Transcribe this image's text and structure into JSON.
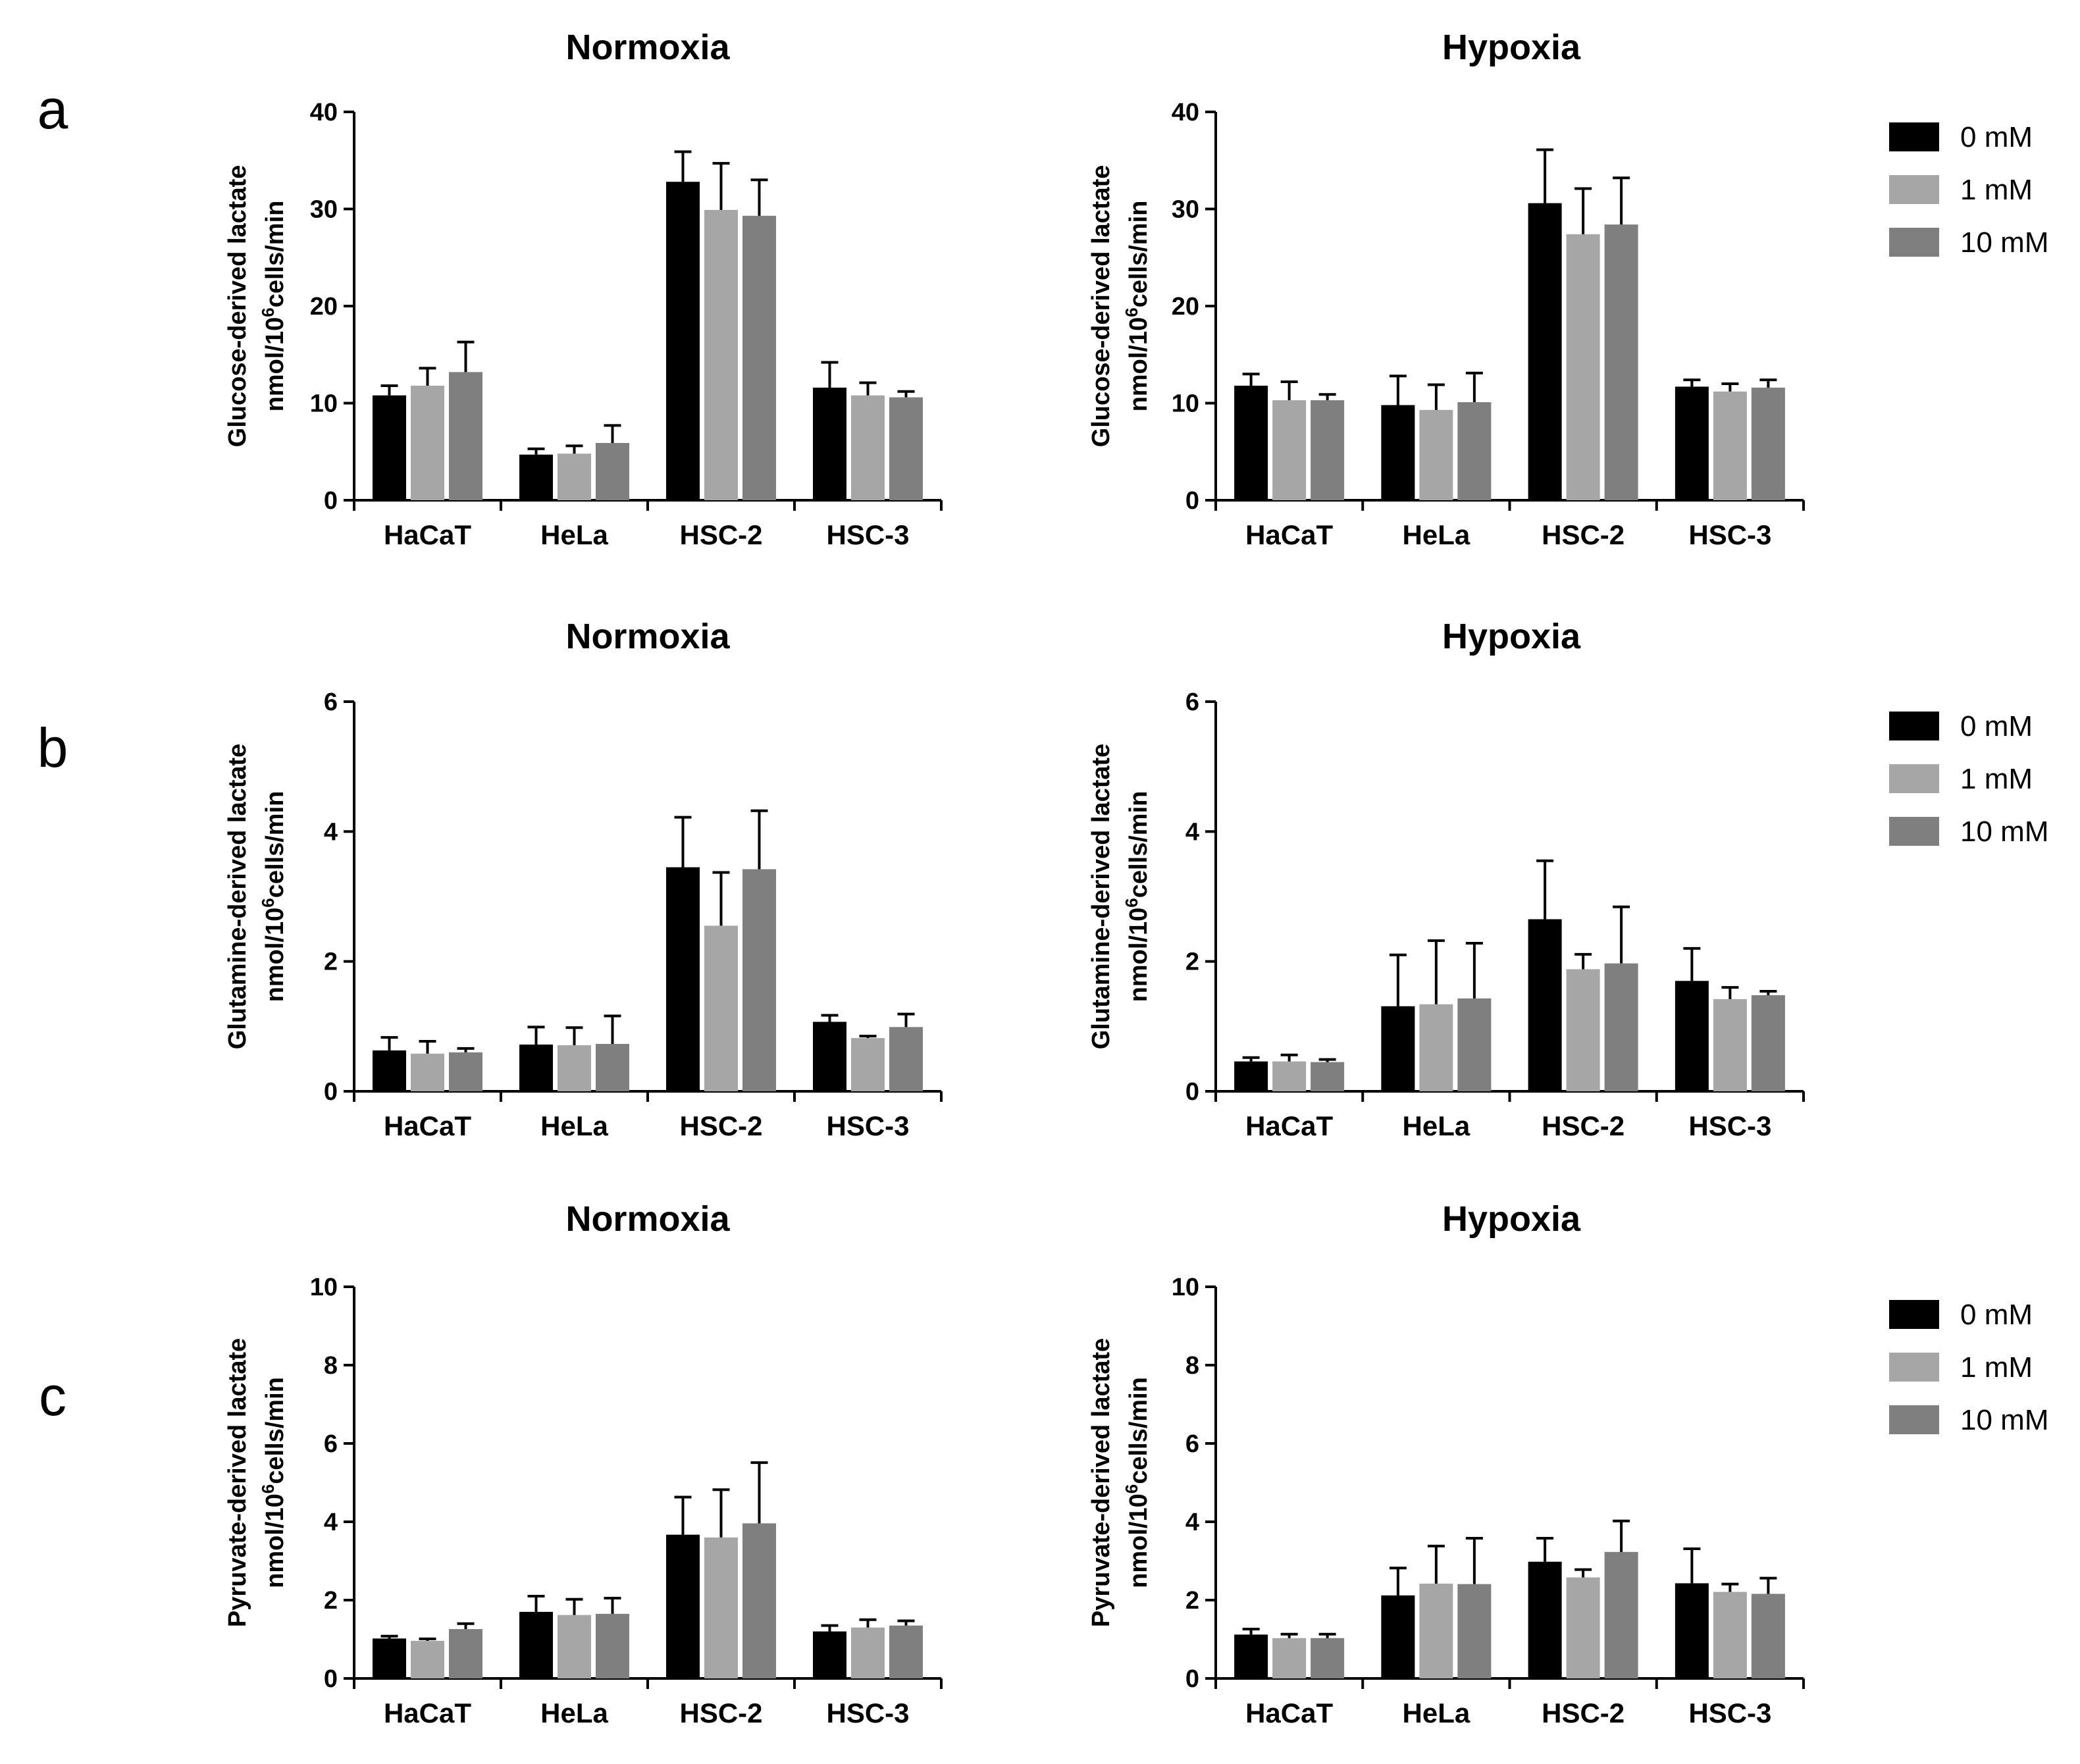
{
  "colors": {
    "0 mM": "#000000",
    "1 mM": "#a6a6a6",
    "10 mM": "#7f7f7f"
  },
  "legend": {
    "items": [
      "0 mM",
      "1 mM",
      "10 mM"
    ]
  },
  "rows": [
    {
      "letter": "a",
      "ylabel_line1": "Glucose-derived lactate",
      "ylabel_line2_pre": "nmol/10",
      "ylabel_line2_sup": "6",
      "ylabel_line2_post": "cells/min"
    },
    {
      "letter": "b",
      "ylabel_line1": "Glutamine-derived lactate",
      "ylabel_line2_pre": "nmol/10",
      "ylabel_line2_sup": "6",
      "ylabel_line2_post": "cells/min"
    },
    {
      "letter": "c",
      "ylabel_line1": "Pyruvate-derived lactate",
      "ylabel_line2_pre": "nmol/10",
      "ylabel_line2_sup": "6",
      "ylabel_line2_post": "cells/min"
    }
  ],
  "chart_data": [
    {
      "type": "bar",
      "panel": "a",
      "title": "Normoxia",
      "categories": [
        "HaCaT",
        "HeLa",
        "HSC-2",
        "HSC-3"
      ],
      "ylim": [
        0,
        40
      ],
      "yticks": [
        0,
        10,
        20,
        30,
        40
      ],
      "series": [
        {
          "name": "0 mM",
          "values": [
            10.8,
            4.7,
            32.8,
            11.6
          ],
          "errors": [
            1.0,
            0.6,
            3.1,
            2.6
          ]
        },
        {
          "name": "1 mM",
          "values": [
            11.8,
            4.8,
            29.9,
            10.8
          ],
          "errors": [
            1.8,
            0.8,
            4.8,
            1.3
          ]
        },
        {
          "name": "10 mM",
          "values": [
            13.2,
            5.9,
            29.3,
            10.6
          ],
          "errors": [
            3.1,
            1.8,
            3.7,
            0.6
          ]
        }
      ]
    },
    {
      "type": "bar",
      "panel": "a",
      "title": "Hypoxia",
      "categories": [
        "HaCaT",
        "HeLa",
        "HSC-2",
        "HSC-3"
      ],
      "ylim": [
        0,
        40
      ],
      "yticks": [
        0,
        10,
        20,
        30,
        40
      ],
      "series": [
        {
          "name": "0 mM",
          "values": [
            11.8,
            9.8,
            30.6,
            11.7
          ],
          "errors": [
            1.2,
            3.0,
            5.5,
            0.7
          ]
        },
        {
          "name": "1 mM",
          "values": [
            10.3,
            9.3,
            27.4,
            11.2
          ],
          "errors": [
            1.9,
            2.6,
            4.7,
            0.8
          ]
        },
        {
          "name": "10 mM",
          "values": [
            10.3,
            10.1,
            28.4,
            11.6
          ],
          "errors": [
            0.6,
            3.0,
            4.8,
            0.8
          ]
        }
      ]
    },
    {
      "type": "bar",
      "panel": "b",
      "title": "Normoxia",
      "categories": [
        "HaCaT",
        "HeLa",
        "HSC-2",
        "HSC-3"
      ],
      "ylim": [
        0,
        6
      ],
      "yticks": [
        0,
        2,
        4,
        6
      ],
      "series": [
        {
          "name": "0 mM",
          "values": [
            0.63,
            0.72,
            3.45,
            1.07
          ],
          "errors": [
            0.2,
            0.27,
            0.77,
            0.1
          ]
        },
        {
          "name": "1 mM",
          "values": [
            0.58,
            0.71,
            2.55,
            0.82
          ],
          "errors": [
            0.19,
            0.27,
            0.82,
            0.03
          ]
        },
        {
          "name": "10 mM",
          "values": [
            0.6,
            0.73,
            3.42,
            0.99
          ],
          "errors": [
            0.06,
            0.43,
            0.9,
            0.2
          ]
        }
      ]
    },
    {
      "type": "bar",
      "panel": "b",
      "title": "Hypoxia",
      "categories": [
        "HaCaT",
        "HeLa",
        "HSC-2",
        "HSC-3"
      ],
      "ylim": [
        0,
        6
      ],
      "yticks": [
        0,
        2,
        4,
        6
      ],
      "series": [
        {
          "name": "0 mM",
          "values": [
            0.46,
            1.31,
            2.65,
            1.7
          ],
          "errors": [
            0.06,
            0.79,
            0.9,
            0.5
          ]
        },
        {
          "name": "1 mM",
          "values": [
            0.46,
            1.34,
            1.88,
            1.42
          ],
          "errors": [
            0.1,
            0.98,
            0.23,
            0.18
          ]
        },
        {
          "name": "10 mM",
          "values": [
            0.45,
            1.43,
            1.97,
            1.48
          ],
          "errors": [
            0.04,
            0.85,
            0.87,
            0.06
          ]
        }
      ]
    },
    {
      "type": "bar",
      "panel": "c",
      "title": "Normoxia",
      "categories": [
        "HaCaT",
        "HeLa",
        "HSC-2",
        "HSC-3"
      ],
      "ylim": [
        0,
        10
      ],
      "yticks": [
        0,
        2,
        4,
        6,
        8,
        10
      ],
      "series": [
        {
          "name": "0 mM",
          "values": [
            1.02,
            1.7,
            3.67,
            1.2
          ],
          "errors": [
            0.06,
            0.4,
            0.96,
            0.15
          ]
        },
        {
          "name": "1 mM",
          "values": [
            0.96,
            1.62,
            3.6,
            1.3
          ],
          "errors": [
            0.05,
            0.4,
            1.22,
            0.2
          ]
        },
        {
          "name": "10 mM",
          "values": [
            1.26,
            1.65,
            3.96,
            1.35
          ],
          "errors": [
            0.14,
            0.4,
            1.55,
            0.12
          ]
        }
      ]
    },
    {
      "type": "bar",
      "panel": "c",
      "title": "Hypoxia",
      "categories": [
        "HaCaT",
        "HeLa",
        "HSC-2",
        "HSC-3"
      ],
      "ylim": [
        0,
        10
      ],
      "yticks": [
        0,
        2,
        4,
        6,
        8,
        10
      ],
      "series": [
        {
          "name": "0 mM",
          "values": [
            1.12,
            2.12,
            2.98,
            2.43
          ],
          "errors": [
            0.14,
            0.7,
            0.6,
            0.88
          ]
        },
        {
          "name": "1 mM",
          "values": [
            1.03,
            2.42,
            2.58,
            2.21
          ],
          "errors": [
            0.1,
            0.96,
            0.2,
            0.2
          ]
        },
        {
          "name": "10 mM",
          "values": [
            1.03,
            2.41,
            3.23,
            2.16
          ],
          "errors": [
            0.1,
            1.17,
            0.79,
            0.4
          ]
        }
      ]
    }
  ]
}
